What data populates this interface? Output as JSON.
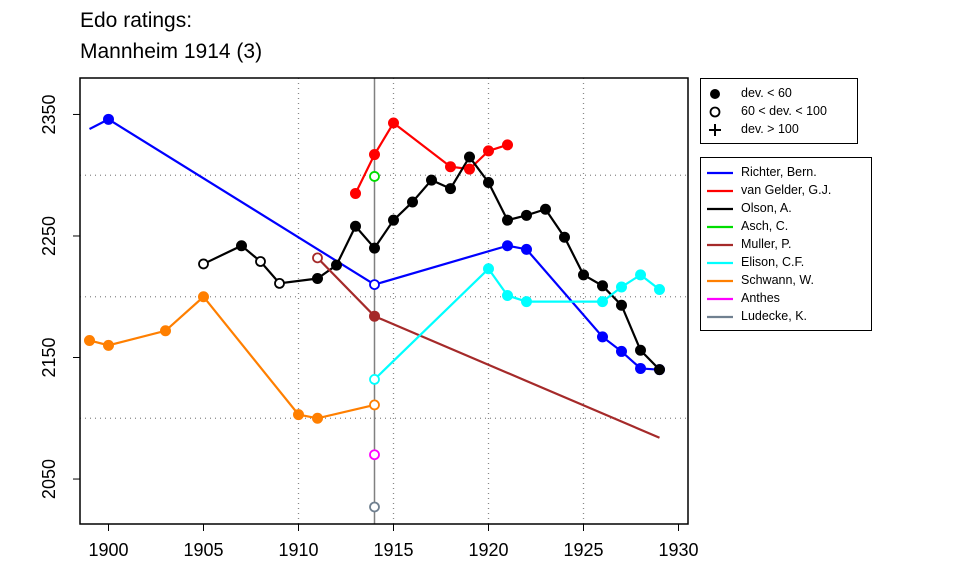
{
  "title_line1": "Edo ratings:",
  "title_line2": "Mannheim 1914 (3)",
  "chart_data": {
    "type": "line",
    "title": "Edo ratings: Mannheim 1914 (3)",
    "xlabel": "",
    "ylabel": "",
    "xlim": [
      1898.5,
      1930.5
    ],
    "ylim": [
      2013,
      2380
    ],
    "x_ticks": [
      1900,
      1905,
      1910,
      1915,
      1920,
      1925,
      1930
    ],
    "y_ticks": [
      2050,
      2150,
      2250,
      2350
    ],
    "y_grid": [
      2100,
      2200,
      2300
    ],
    "x_grid": [
      1910,
      1915,
      1920,
      1925
    ],
    "event_year": 1914,
    "marker_legend": [
      {
        "symbol": "filled",
        "label": "dev. < 60"
      },
      {
        "symbol": "open",
        "label": "60 < dev. < 100"
      },
      {
        "symbol": "plus",
        "label": "dev. > 100"
      }
    ],
    "series": [
      {
        "name": "Richter, Bern.",
        "color": "#0000ff",
        "line": [
          [
            1899,
            2338
          ],
          [
            1900,
            2346
          ]
        ],
        "points": [
          [
            1900,
            2346,
            "filled"
          ],
          [
            1914,
            2210,
            "open"
          ],
          [
            1921,
            2242,
            "filled"
          ],
          [
            1922,
            2239,
            "filled"
          ],
          [
            1926,
            2167,
            "filled"
          ],
          [
            1927,
            2155,
            "filled"
          ],
          [
            1928,
            2141,
            "filled"
          ],
          [
            1929,
            2140,
            "filled"
          ]
        ]
      },
      {
        "name": "van Gelder, G.J.",
        "color": "#ff0000",
        "points": [
          [
            1913,
            2285,
            "filled"
          ],
          [
            1914,
            2317,
            "filled"
          ],
          [
            1915,
            2343,
            "filled"
          ],
          [
            1918,
            2307,
            "filled"
          ],
          [
            1919,
            2305,
            "filled"
          ],
          [
            1920,
            2320,
            "filled"
          ],
          [
            1921,
            2325,
            "filled"
          ]
        ]
      },
      {
        "name": "Olson, A.",
        "color": "#000000",
        "points": [
          [
            1905,
            2227,
            "open"
          ],
          [
            1907,
            2242,
            "filled"
          ],
          [
            1908,
            2229,
            "open"
          ],
          [
            1909,
            2211,
            "open"
          ],
          [
            1911,
            2215,
            "filled"
          ],
          [
            1912,
            2226,
            "filled"
          ],
          [
            1913,
            2258,
            "filled"
          ],
          [
            1914,
            2240,
            "filled"
          ],
          [
            1915,
            2263,
            "filled"
          ],
          [
            1916,
            2278,
            "filled"
          ],
          [
            1917,
            2296,
            "filled"
          ],
          [
            1918,
            2289,
            "filled"
          ],
          [
            1919,
            2315,
            "filled"
          ],
          [
            1920,
            2294,
            "filled"
          ],
          [
            1921,
            2263,
            "filled"
          ],
          [
            1922,
            2267,
            "filled"
          ],
          [
            1923,
            2272,
            "filled"
          ],
          [
            1924,
            2249,
            "filled"
          ],
          [
            1925,
            2218,
            "filled"
          ],
          [
            1926,
            2209,
            "filled"
          ],
          [
            1927,
            2193,
            "filled"
          ],
          [
            1928,
            2156,
            "filled"
          ],
          [
            1929,
            2140,
            "filled"
          ]
        ]
      },
      {
        "name": "Asch, C.",
        "color": "#00dd00",
        "points": [
          [
            1914,
            2299,
            "open"
          ]
        ]
      },
      {
        "name": "Muller, P.",
        "color": "#a52a2a",
        "line_end": [
          1929,
          2084
        ],
        "points": [
          [
            1911,
            2232,
            "open"
          ],
          [
            1914,
            2184,
            "filled"
          ]
        ]
      },
      {
        "name": "Elison, C.F.",
        "color": "#00ffff",
        "points": [
          [
            1914,
            2132,
            "open"
          ],
          [
            1920,
            2223,
            "filled"
          ],
          [
            1921,
            2201,
            "filled"
          ],
          [
            1922,
            2196,
            "filled"
          ],
          [
            1926,
            2196,
            "filled"
          ],
          [
            1927,
            2208,
            "filled"
          ],
          [
            1928,
            2218,
            "filled"
          ],
          [
            1929,
            2206,
            "filled"
          ]
        ]
      },
      {
        "name": "Schwann, W.",
        "color": "#ff7f00",
        "points": [
          [
            1899,
            2164,
            "filled"
          ],
          [
            1900,
            2160,
            "filled"
          ],
          [
            1903,
            2172,
            "filled"
          ],
          [
            1905,
            2200,
            "filled"
          ],
          [
            1910,
            2103,
            "filled"
          ],
          [
            1911,
            2100,
            "filled"
          ],
          [
            1914,
            2111,
            "open"
          ]
        ]
      },
      {
        "name": "Anthes",
        "color": "#ff00ff",
        "points": [
          [
            1914,
            2070,
            "open"
          ]
        ]
      },
      {
        "name": "Ludecke, K.",
        "color": "#708090",
        "points": [
          [
            1914,
            2027,
            "open"
          ]
        ]
      }
    ]
  }
}
